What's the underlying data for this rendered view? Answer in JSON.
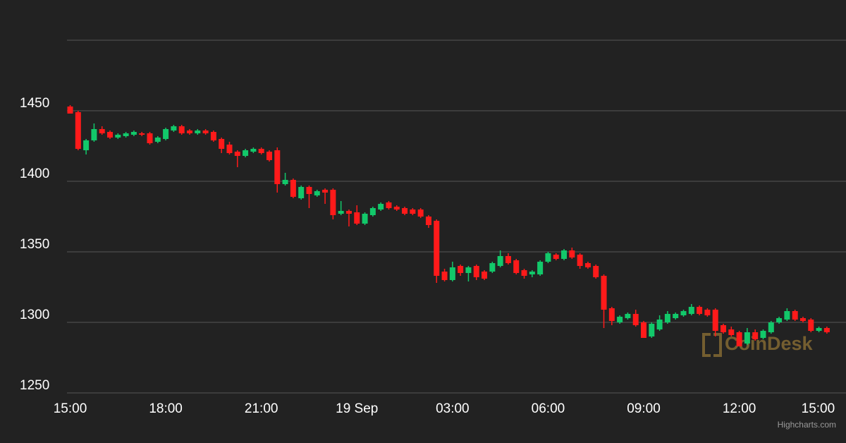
{
  "chart_data": {
    "type": "candlestick",
    "up_color": "#12c86a",
    "down_color": "#ff1a1a",
    "grid": true,
    "xlim": [
      -0.1,
      24.35
    ],
    "ylim": [
      1250,
      1500
    ],
    "yticks": [
      1250,
      1300,
      1350,
      1400,
      1450
    ],
    "xticks": [
      {
        "value": 0,
        "label": "15:00"
      },
      {
        "value": 3,
        "label": "18:00"
      },
      {
        "value": 6,
        "label": "21:00"
      },
      {
        "value": 9,
        "label": "19 Sep"
      },
      {
        "value": 12,
        "label": "03:00"
      },
      {
        "value": 15,
        "label": "06:00"
      },
      {
        "value": 18,
        "label": "09:00"
      },
      {
        "value": 21,
        "label": "12:00"
      },
      {
        "value": 24,
        "label": "15:00"
      }
    ],
    "x": [
      0,
      0.25,
      0.5,
      0.75,
      1,
      1.25,
      1.5,
      1.75,
      2,
      2.25,
      2.5,
      2.75,
      3,
      3.25,
      3.5,
      3.75,
      4,
      4.25,
      4.5,
      4.75,
      5,
      5.25,
      5.5,
      5.75,
      6,
      6.25,
      6.5,
      6.75,
      7,
      7.25,
      7.5,
      7.75,
      8,
      8.25,
      8.5,
      8.75,
      9,
      9.25,
      9.5,
      9.75,
      10,
      10.25,
      10.5,
      10.75,
      11,
      11.25,
      11.5,
      11.75,
      12,
      12.25,
      12.5,
      12.75,
      13,
      13.25,
      13.5,
      13.75,
      14,
      14.25,
      14.5,
      14.75,
      15,
      15.25,
      15.5,
      15.75,
      16,
      16.25,
      16.5,
      16.75,
      17,
      17.25,
      17.5,
      17.75,
      18,
      18.25,
      18.5,
      18.75,
      19,
      19.25,
      19.5,
      19.75,
      20,
      20.25,
      20.5,
      20.75,
      21,
      21.25,
      21.5,
      21.75,
      22,
      22.25,
      22.5,
      22.75,
      23,
      23.25,
      23.5,
      23.75
    ],
    "open": [
      1453,
      1449,
      1422,
      1429,
      1437,
      1435,
      1431,
      1432,
      1433,
      1434,
      1434,
      1428,
      1430,
      1436,
      1439,
      1436,
      1434,
      1436,
      1435,
      1430,
      1426,
      1421,
      1418,
      1421,
      1423,
      1421,
      1422,
      1398,
      1401,
      1388,
      1396,
      1390,
      1394,
      1394,
      1377,
      1379,
      1378,
      1370,
      1376,
      1380,
      1385,
      1382,
      1381,
      1380,
      1380,
      1375,
      1372,
      1336,
      1330,
      1340,
      1335,
      1340,
      1336,
      1336,
      1340,
      1347,
      1344,
      1337,
      1334,
      1334,
      1343,
      1348,
      1345,
      1351,
      1348,
      1342,
      1340,
      1333,
      1310,
      1300,
      1303,
      1306,
      1300,
      1290,
      1295,
      1300,
      1303,
      1305,
      1306,
      1311,
      1309,
      1309,
      1298,
      1295,
      1293,
      1285,
      1293,
      1289,
      1293,
      1300,
      1302,
      1308,
      1303,
      1302,
      1294,
      1296
    ],
    "high": [
      1454,
      1450,
      1430,
      1441,
      1439,
      1436,
      1434,
      1435,
      1436,
      1435,
      1435,
      1432,
      1438,
      1440,
      1440,
      1437,
      1437,
      1437,
      1436,
      1431,
      1428,
      1422,
      1423,
      1424,
      1424,
      1422,
      1424,
      1406,
      1402,
      1397,
      1397,
      1394,
      1395,
      1395,
      1386,
      1380,
      1383,
      1378,
      1382,
      1385,
      1386,
      1383,
      1382,
      1381,
      1381,
      1376,
      1373,
      1338,
      1343,
      1341,
      1340,
      1341,
      1337,
      1343,
      1351,
      1349,
      1345,
      1338,
      1337,
      1344,
      1350,
      1349,
      1352,
      1353,
      1349,
      1343,
      1341,
      1334,
      1311,
      1305,
      1307,
      1309,
      1301,
      1300,
      1305,
      1308,
      1307,
      1309,
      1313,
      1312,
      1310,
      1310,
      1299,
      1297,
      1294,
      1296,
      1295,
      1295,
      1301,
      1304,
      1310,
      1309,
      1304,
      1303,
      1297,
      1297
    ],
    "low": [
      1448,
      1422,
      1419,
      1428,
      1433,
      1430,
      1430,
      1431,
      1432,
      1432,
      1426,
      1427,
      1429,
      1435,
      1433,
      1433,
      1433,
      1433,
      1428,
      1420,
      1419,
      1410,
      1417,
      1420,
      1419,
      1414,
      1392,
      1397,
      1388,
      1387,
      1381,
      1389,
      1384,
      1373,
      1376,
      1368,
      1369,
      1369,
      1375,
      1379,
      1380,
      1379,
      1376,
      1376,
      1374,
      1367,
      1328,
      1329,
      1329,
      1333,
      1329,
      1330,
      1330,
      1335,
      1339,
      1341,
      1334,
      1331,
      1332,
      1333,
      1342,
      1344,
      1344,
      1345,
      1338,
      1338,
      1331,
      1296,
      1298,
      1299,
      1302,
      1297,
      1289,
      1289,
      1294,
      1299,
      1302,
      1304,
      1305,
      1305,
      1304,
      1290,
      1292,
      1290,
      1283,
      1284,
      1287,
      1288,
      1292,
      1299,
      1301,
      1301,
      1300,
      1293,
      1293,
      1292
    ],
    "close": [
      1448,
      1423,
      1429,
      1437,
      1434,
      1431,
      1433,
      1434,
      1435,
      1433,
      1427,
      1431,
      1437,
      1439,
      1434,
      1434,
      1436,
      1434,
      1429,
      1423,
      1420,
      1418,
      1422,
      1423,
      1420,
      1415,
      1398,
      1401,
      1389,
      1396,
      1391,
      1393,
      1392,
      1376,
      1379,
      1377,
      1370,
      1377,
      1381,
      1384,
      1381,
      1380,
      1377,
      1377,
      1375,
      1369,
      1333,
      1330,
      1339,
      1335,
      1339,
      1332,
      1331,
      1342,
      1347,
      1342,
      1335,
      1333,
      1336,
      1343,
      1349,
      1345,
      1351,
      1346,
      1340,
      1339,
      1332,
      1309,
      1301,
      1304,
      1306,
      1298,
      1289,
      1299,
      1302,
      1306,
      1306,
      1308,
      1311,
      1306,
      1305,
      1294,
      1293,
      1291,
      1283,
      1293,
      1288,
      1294,
      1300,
      1303,
      1308,
      1302,
      1301,
      1294,
      1296,
      1293
    ],
    "watermark": "CoinDesk",
    "credit": "Highcharts.com"
  }
}
